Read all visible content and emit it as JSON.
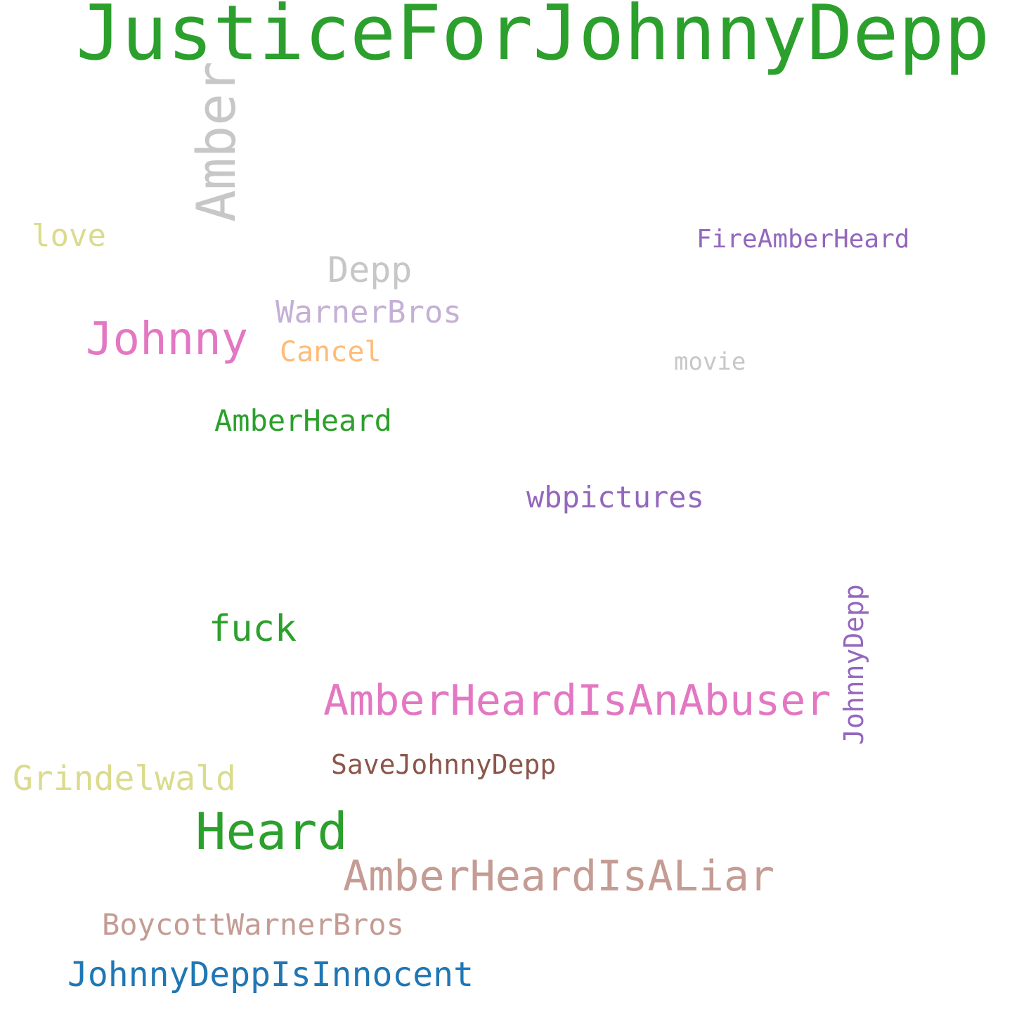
{
  "words": [
    {
      "text": "JusticeForJohnnyDepp",
      "color": "#2ca02c",
      "orientation": "horizontal"
    },
    {
      "text": "Amber",
      "color": "#c7c7c7",
      "orientation": "vertical"
    },
    {
      "text": "love",
      "color": "#dbdb8d",
      "orientation": "horizontal"
    },
    {
      "text": "FireAmberHeard",
      "color": "#9467bd",
      "orientation": "horizontal"
    },
    {
      "text": "Depp",
      "color": "#c7c7c7",
      "orientation": "horizontal"
    },
    {
      "text": "WarnerBros",
      "color": "#c5b0d5",
      "orientation": "horizontal"
    },
    {
      "text": "Johnny",
      "color": "#e377c2",
      "orientation": "horizontal"
    },
    {
      "text": "Cancel",
      "color": "#ffbb78",
      "orientation": "horizontal"
    },
    {
      "text": "movie",
      "color": "#c7c7c7",
      "orientation": "horizontal"
    },
    {
      "text": "AmberHeard",
      "color": "#2ca02c",
      "orientation": "horizontal"
    },
    {
      "text": "wbpictures",
      "color": "#9467bd",
      "orientation": "horizontal"
    },
    {
      "text": "JohnnyDepp",
      "color": "#9467bd",
      "orientation": "vertical"
    },
    {
      "text": "fuck",
      "color": "#2ca02c",
      "orientation": "horizontal"
    },
    {
      "text": "AmberHeardIsAnAbuser",
      "color": "#e377c2",
      "orientation": "horizontal"
    },
    {
      "text": "Grindelwald",
      "color": "#dbdb8d",
      "orientation": "horizontal"
    },
    {
      "text": "SaveJohnnyDepp",
      "color": "#8c564b",
      "orientation": "horizontal"
    },
    {
      "text": "Heard",
      "color": "#2ca02c",
      "orientation": "horizontal"
    },
    {
      "text": "AmberHeardIsALiar",
      "color": "#c49c94",
      "orientation": "horizontal"
    },
    {
      "text": "BoycottWarnerBros",
      "color": "#c49c94",
      "orientation": "horizontal"
    },
    {
      "text": "JohnnyDeppIsInnocent",
      "color": "#1f77b4",
      "orientation": "horizontal"
    }
  ]
}
